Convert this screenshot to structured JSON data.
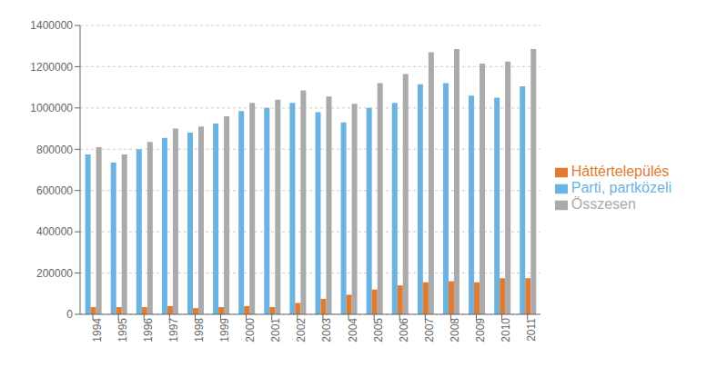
{
  "chart_data": {
    "type": "bar",
    "categories": [
      "1994",
      "1995",
      "1996",
      "1997",
      "1998",
      "1999",
      "2000",
      "2001",
      "2002",
      "2003",
      "2004",
      "2005",
      "2006",
      "2007",
      "2008",
      "2009",
      "2010",
      "2011"
    ],
    "series": [
      {
        "name": "Parti, partközeli",
        "color": "#6bb3e0",
        "values": [
          775000,
          735000,
          800000,
          855000,
          880000,
          925000,
          985000,
          1000000,
          1025000,
          980000,
          930000,
          1000000,
          1025000,
          1115000,
          1120000,
          1060000,
          1050000,
          1105000
        ]
      },
      {
        "name": "Háttértelepülés",
        "color": "#e07b30",
        "values": [
          35000,
          35000,
          35000,
          40000,
          30000,
          35000,
          40000,
          35000,
          55000,
          75000,
          95000,
          120000,
          140000,
          155000,
          160000,
          155000,
          175000,
          175000
        ]
      },
      {
        "name": "Összesen",
        "color": "#aaaaaa",
        "values": [
          810000,
          775000,
          835000,
          900000,
          910000,
          960000,
          1025000,
          1040000,
          1085000,
          1055000,
          1020000,
          1120000,
          1165000,
          1270000,
          1285000,
          1215000,
          1225000,
          1285000
        ]
      }
    ],
    "ylim": [
      0,
      1400000
    ],
    "yticks": [
      0,
      200000,
      400000,
      600000,
      800000,
      1000000,
      1200000,
      1400000
    ],
    "grid": true,
    "legend": "right"
  }
}
